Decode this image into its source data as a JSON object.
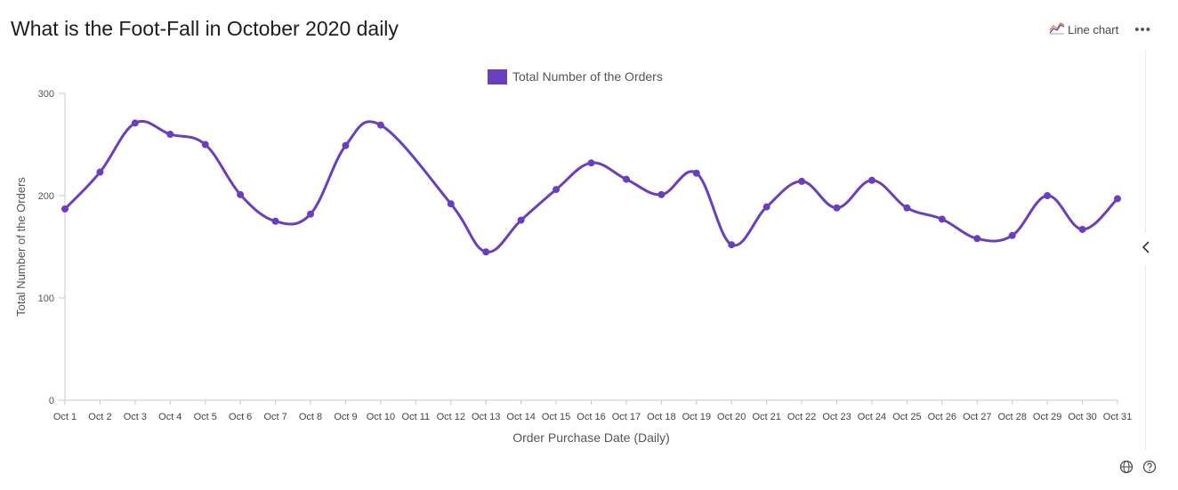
{
  "header": {
    "title": "What is the Foot-Fall in October 2020 daily",
    "chart_type_label": "Line chart",
    "more_label": "•••"
  },
  "icons": {
    "chart_type": "line-chart-icon",
    "collapse": "chevron-left-icon",
    "globe": "globe-icon",
    "help": "help-icon"
  },
  "colors": {
    "series": "#6a3fbe",
    "axis": "#c8c8c8",
    "text": "#555555"
  },
  "chart_data": {
    "type": "line",
    "title": "What is the Foot-Fall in October 2020 daily",
    "xlabel": "Order Purchase Date (Daily)",
    "ylabel": "Total Number of the Orders",
    "ylim": [
      0,
      300
    ],
    "yticks": [
      0,
      100,
      200,
      300
    ],
    "grid": false,
    "legend": "top-center",
    "categories": [
      "Oct 1",
      "Oct 2",
      "Oct 3",
      "Oct 4",
      "Oct 5",
      "Oct 6",
      "Oct 7",
      "Oct 8",
      "Oct 9",
      "Oct 10",
      "Oct 11",
      "Oct 12",
      "Oct 13",
      "Oct 14",
      "Oct 15",
      "Oct 16",
      "Oct 17",
      "Oct 18",
      "Oct 19",
      "Oct 20",
      "Oct 21",
      "Oct 22",
      "Oct 23",
      "Oct 24",
      "Oct 25",
      "Oct 26",
      "Oct 27",
      "Oct 28",
      "Oct 29",
      "Oct 30",
      "Oct 31"
    ],
    "series": [
      {
        "name": "Total Number of the Orders",
        "values": [
          187,
          223,
          271,
          260,
          250,
          201,
          175,
          182,
          249,
          269,
          null,
          192,
          145,
          176,
          206,
          232,
          216,
          201,
          222,
          152,
          189,
          214,
          188,
          215,
          188,
          177,
          158,
          161,
          200,
          167,
          197
        ]
      }
    ]
  }
}
